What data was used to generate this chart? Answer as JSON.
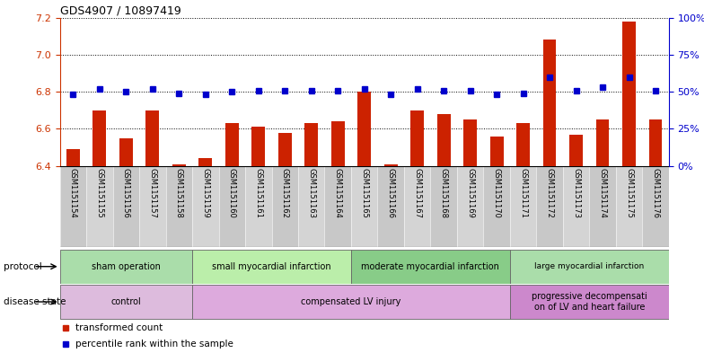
{
  "title": "GDS4907 / 10897419",
  "samples": [
    "GSM1151154",
    "GSM1151155",
    "GSM1151156",
    "GSM1151157",
    "GSM1151158",
    "GSM1151159",
    "GSM1151160",
    "GSM1151161",
    "GSM1151162",
    "GSM1151163",
    "GSM1151164",
    "GSM1151165",
    "GSM1151166",
    "GSM1151167",
    "GSM1151168",
    "GSM1151169",
    "GSM1151170",
    "GSM1151171",
    "GSM1151172",
    "GSM1151173",
    "GSM1151174",
    "GSM1151175",
    "GSM1151176"
  ],
  "bar_values": [
    6.49,
    6.7,
    6.55,
    6.7,
    6.41,
    6.44,
    6.63,
    6.61,
    6.58,
    6.63,
    6.64,
    6.8,
    6.41,
    6.7,
    6.68,
    6.65,
    6.56,
    6.63,
    7.08,
    6.57,
    6.65,
    7.18,
    6.65
  ],
  "dot_values": [
    48,
    52,
    50,
    52,
    49,
    48,
    50,
    51,
    51,
    51,
    51,
    52,
    48,
    52,
    51,
    51,
    48,
    49,
    60,
    51,
    53,
    60,
    51
  ],
  "ylim_left": [
    6.4,
    7.2
  ],
  "ylim_right": [
    0,
    100
  ],
  "yticks_left": [
    6.4,
    6.6,
    6.8,
    7.0,
    7.2
  ],
  "yticks_right": [
    0,
    25,
    50,
    75,
    100
  ],
  "ytick_labels_right": [
    "0%",
    "25%",
    "50%",
    "75%",
    "100%"
  ],
  "bar_color": "#CC2200",
  "dot_color": "#0000CC",
  "protocol_groups": [
    {
      "label": "sham operation",
      "start": 0,
      "end": 5
    },
    {
      "label": "small myocardial infarction",
      "start": 5,
      "end": 11
    },
    {
      "label": "moderate myocardial infarction",
      "start": 11,
      "end": 17
    },
    {
      "label": "large myocardial infarction",
      "start": 17,
      "end": 23
    }
  ],
  "protocol_colors": [
    "#AADDAA",
    "#BBEEAA",
    "#88CC88",
    "#AADDAA"
  ],
  "disease_groups": [
    {
      "label": "control",
      "start": 0,
      "end": 5
    },
    {
      "label": "compensated LV injury",
      "start": 5,
      "end": 17
    },
    {
      "label": "progressive decompensati\non of LV and heart failure",
      "start": 17,
      "end": 23
    }
  ],
  "disease_colors": [
    "#DDBBDD",
    "#DDAADD",
    "#CC88CC"
  ],
  "legend_items": [
    "transformed count",
    "percentile rank within the sample"
  ],
  "background_color": "#FFFFFF",
  "xlabels_bg": "#CCCCCC",
  "bar_width": 0.5
}
